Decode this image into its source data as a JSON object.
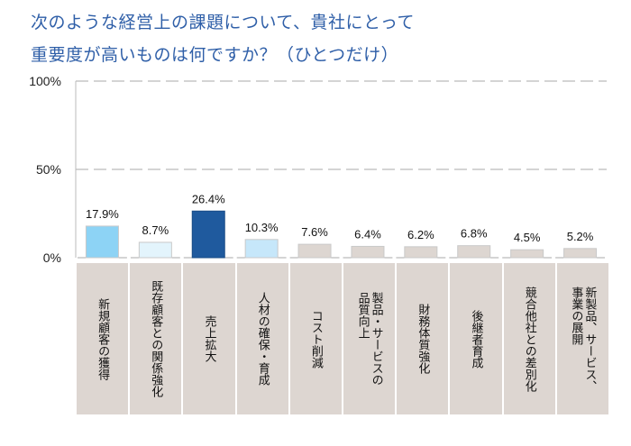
{
  "title_lines": [
    "次のような経営上の課題について、貴社にとって",
    "重要度が高いものは何ですか？（ひとつだけ）"
  ],
  "chart_data": {
    "type": "bar",
    "title": "次のような経営上の課題について、貴社にとって重要度が高いものは何ですか？（ひとつだけ）",
    "xlabel": "",
    "ylabel": "",
    "ylim": [
      0,
      100
    ],
    "yticks": [
      {
        "value": 0,
        "label": "0%"
      },
      {
        "value": 50,
        "label": "50%"
      },
      {
        "value": 100,
        "label": "100%"
      }
    ],
    "grid": true,
    "categories": [
      "新規顧客の獲得",
      "既存顧客との関係強化",
      "売上拡大",
      "人材の確保・育成",
      "コスト削減",
      "製品・サービスの\n品質向上",
      "財務体質強化",
      "後継者育成",
      "競合他社との差別化",
      "新製品、サービス、\n事業の展開"
    ],
    "values": [
      17.9,
      8.7,
      26.4,
      10.3,
      7.6,
      6.4,
      6.2,
      6.8,
      4.5,
      5.2
    ],
    "value_labels": [
      "17.9%",
      "8.7%",
      "26.4%",
      "10.3%",
      "7.6%",
      "6.4%",
      "6.2%",
      "6.8%",
      "4.5%",
      "5.2%"
    ],
    "bar_colors": [
      "#8dd3f5",
      "#e3f4fc",
      "#1f5a9e",
      "#c6e7fa",
      "#ddd6d1",
      "#ddd6d1",
      "#ddd6d1",
      "#ddd6d1",
      "#ddd6d1",
      "#ddd6d1"
    ],
    "legend": null
  },
  "colors": {
    "title": "#2f5fa8",
    "grid": "#bbbbbb",
    "category_cell": "#ddd6d1"
  }
}
